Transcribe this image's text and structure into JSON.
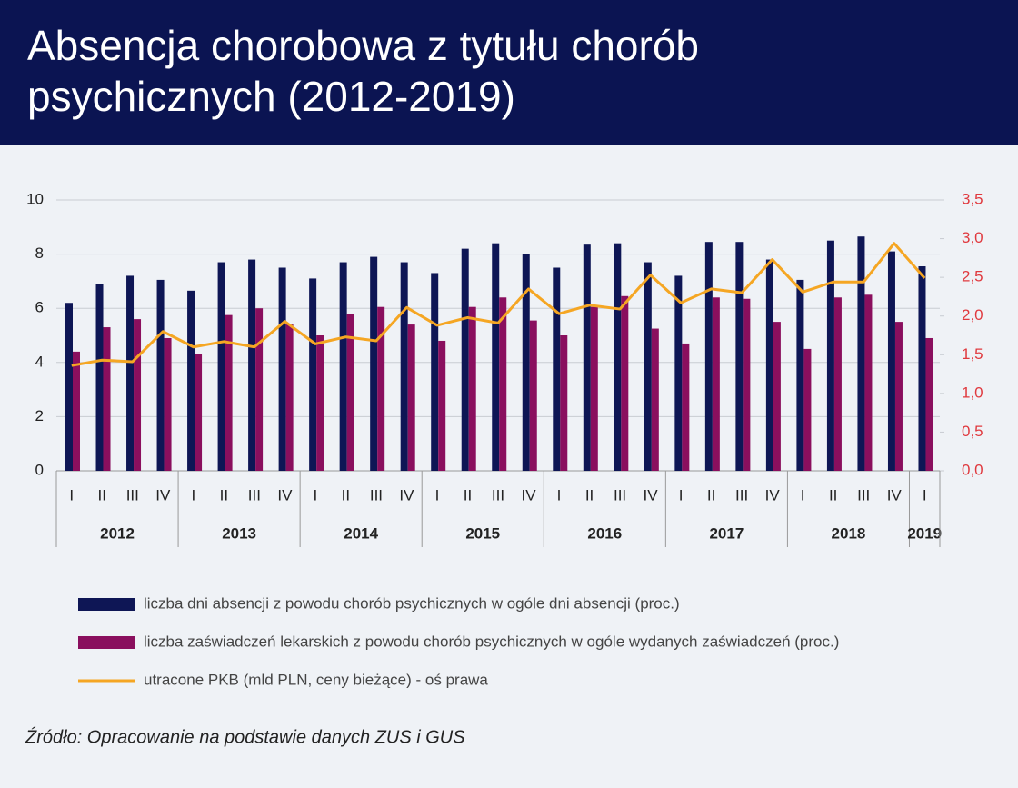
{
  "chart_data": {
    "type": "bar-line",
    "title": "Absencja chorobowa z tytułu chorób psychicznych (2012-2019)",
    "categories": [
      "I",
      "II",
      "III",
      "IV",
      "I",
      "II",
      "III",
      "IV",
      "I",
      "II",
      "III",
      "IV",
      "I",
      "II",
      "III",
      "IV",
      "I",
      "II",
      "III",
      "IV",
      "I",
      "II",
      "III",
      "IV",
      "I",
      "II",
      "III",
      "IV",
      "I"
    ],
    "groups": [
      {
        "label": "2012",
        "count": 4
      },
      {
        "label": "2013",
        "count": 4
      },
      {
        "label": "2014",
        "count": 4
      },
      {
        "label": "2015",
        "count": 4
      },
      {
        "label": "2016",
        "count": 4
      },
      {
        "label": "2017",
        "count": 4
      },
      {
        "label": "2018",
        "count": 4
      },
      {
        "label": "2019",
        "count": 1
      }
    ],
    "series": [
      {
        "name": "liczba dni absencji z powodu chorób psychicznych w ogóle dni absencji (proc.)",
        "kind": "bar",
        "color": "#0e1655",
        "values": [
          6.2,
          6.9,
          7.2,
          7.05,
          6.65,
          7.7,
          7.8,
          7.5,
          7.1,
          7.7,
          7.9,
          7.7,
          7.3,
          8.2,
          8.4,
          8.0,
          7.5,
          8.35,
          8.4,
          7.7,
          7.2,
          8.45,
          8.45,
          7.8,
          7.05,
          8.5,
          8.65,
          8.1,
          7.55
        ]
      },
      {
        "name": "liczba zaświadczeń lekarskich z powodu chorób psychicznych w ogóle wydanych zaświadczeń (proc.)",
        "kind": "bar",
        "color": "#8a0f5e",
        "values": [
          4.4,
          5.3,
          5.6,
          4.9,
          4.3,
          5.75,
          6.0,
          5.4,
          5.0,
          5.8,
          6.05,
          5.4,
          4.8,
          6.05,
          6.4,
          5.55,
          5.0,
          6.05,
          6.45,
          5.25,
          4.7,
          6.4,
          6.35,
          5.5,
          4.5,
          6.4,
          6.5,
          5.5,
          4.9
        ]
      },
      {
        "name": "utracone PKB (mld PLN, ceny bieżące) - oś prawa",
        "kind": "line",
        "axis": "y2",
        "color": "#f5a623",
        "values": [
          1.36,
          1.43,
          1.41,
          1.8,
          1.6,
          1.67,
          1.6,
          1.93,
          1.64,
          1.73,
          1.68,
          2.11,
          1.88,
          1.98,
          1.91,
          2.35,
          2.03,
          2.14,
          2.09,
          2.53,
          2.17,
          2.35,
          2.3,
          2.73,
          2.31,
          2.44,
          2.44,
          2.94,
          2.49
        ]
      }
    ],
    "ylim": [
      0,
      10
    ],
    "yticks": [
      0,
      2,
      4,
      6,
      8,
      10
    ],
    "y2lim": [
      0,
      3.5
    ],
    "y2ticks": [
      {
        "value": 0,
        "label": "0,0"
      },
      {
        "value": 0.5,
        "label": "0,5"
      },
      {
        "value": 1,
        "label": "1,0"
      },
      {
        "value": 1.5,
        "label": "1,5"
      },
      {
        "value": 2,
        "label": "2,0"
      },
      {
        "value": 2.5,
        "label": "2,5"
      },
      {
        "value": 3,
        "label": "3,0"
      },
      {
        "value": 3.5,
        "label": "3,5"
      }
    ],
    "grid": true,
    "y2_label_color": "#e0393e",
    "source": "Źródło: Opracowanie na podstawie danych ZUS i GUS"
  }
}
